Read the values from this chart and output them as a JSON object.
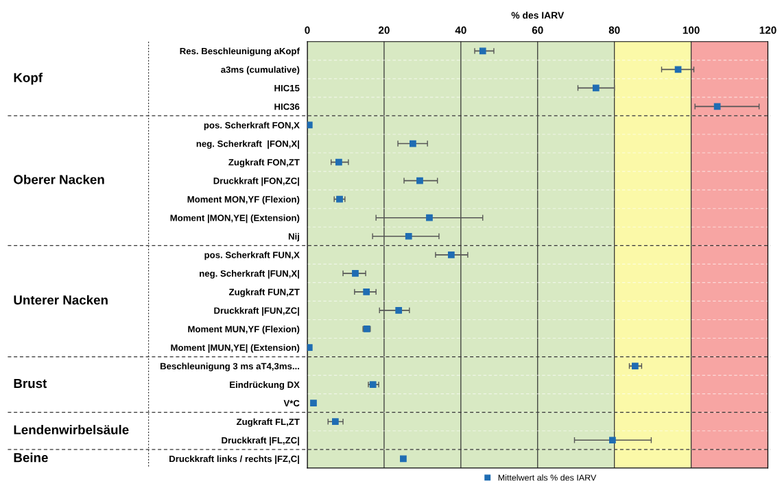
{
  "chart_data": {
    "type": "scatter",
    "orientation": "horizontal",
    "xlabel": "% des IARV",
    "categories": [
      "Res. Beschleunigung aKopf",
      "a3ms (cumulative)",
      "HIC15",
      "HIC36",
      "pos. Scherkraft FON,X",
      "neg. Scherkraft  |FON,X|",
      "Zugkraft FON,ZT",
      "Druckkraft |FON,ZC|",
      "Moment MON,YF (Flexion)",
      "Moment |MON,YE| (Extension)",
      "Nij",
      "pos. Scherkraft FUN,X",
      "neg. Scherkraft |FUN,X|",
      "Zugkraft FUN,ZT",
      "Druckkraft |FUN,ZC|",
      "Moment MUN,YF (Flexion)",
      "Moment |MUN,YE| (Extension)",
      "Beschleunigung 3 ms aT4,3ms...",
      "Eindrückung DX",
      "V*C",
      "Zugkraft FL,ZT",
      "Druckkraft |FL,ZC|",
      "Druckkraft links / rechts |FZ,C|"
    ],
    "series": [
      {
        "name": "Mittelwert als % des IARV",
        "color": "#1f6db3",
        "values": [
          45.7,
          96.6,
          75.2,
          106.8,
          0.5,
          27.5,
          8.2,
          29.3,
          8.4,
          31.8,
          26.4,
          37.5,
          12.5,
          15.4,
          23.8,
          15.5,
          0.5,
          85.4,
          17.1,
          1.6,
          7.3,
          79.5,
          25
        ],
        "errors": [
          [
            43.6,
            48.6
          ],
          [
            92.3,
            100.7
          ],
          [
            70.5,
            80
          ],
          [
            101,
            117.7
          ],
          null,
          [
            23.6,
            31.3
          ],
          [
            6.2,
            10.7
          ],
          [
            25.2,
            33.9
          ],
          [
            7,
            9.8
          ],
          [
            17.9,
            45.7
          ],
          [
            17,
            34.3
          ],
          [
            33.4,
            41.8
          ],
          [
            9.3,
            15.2
          ],
          [
            12.3,
            17.9
          ],
          [
            18.8,
            26.6
          ],
          [
            14.5,
            16.4
          ],
          null,
          [
            83.9,
            87.1
          ],
          [
            15.9,
            18.6
          ],
          null,
          [
            5.4,
            9.3
          ],
          [
            69.6,
            89.6
          ],
          null
        ]
      }
    ],
    "xlim": [
      0,
      120
    ],
    "xticks": [
      0,
      20,
      40,
      60,
      80,
      100,
      120
    ],
    "grid": "x",
    "marker": "square",
    "legend": "bottom",
    "bands": [
      {
        "axis": "x",
        "from": 0,
        "to": 80,
        "color": "#d8e9c3"
      },
      {
        "axis": "x",
        "from": 80,
        "to": 100,
        "color": "#fbf9a8"
      },
      {
        "axis": "x",
        "from": 100,
        "to": 120,
        "color": "#f7a5a3"
      }
    ],
    "annotations": [
      "Kopf",
      "Oberer Nacken",
      "Unterer Nacken",
      "Brust",
      "Lendenwirbelsäule",
      "Beine"
    ]
  }
}
